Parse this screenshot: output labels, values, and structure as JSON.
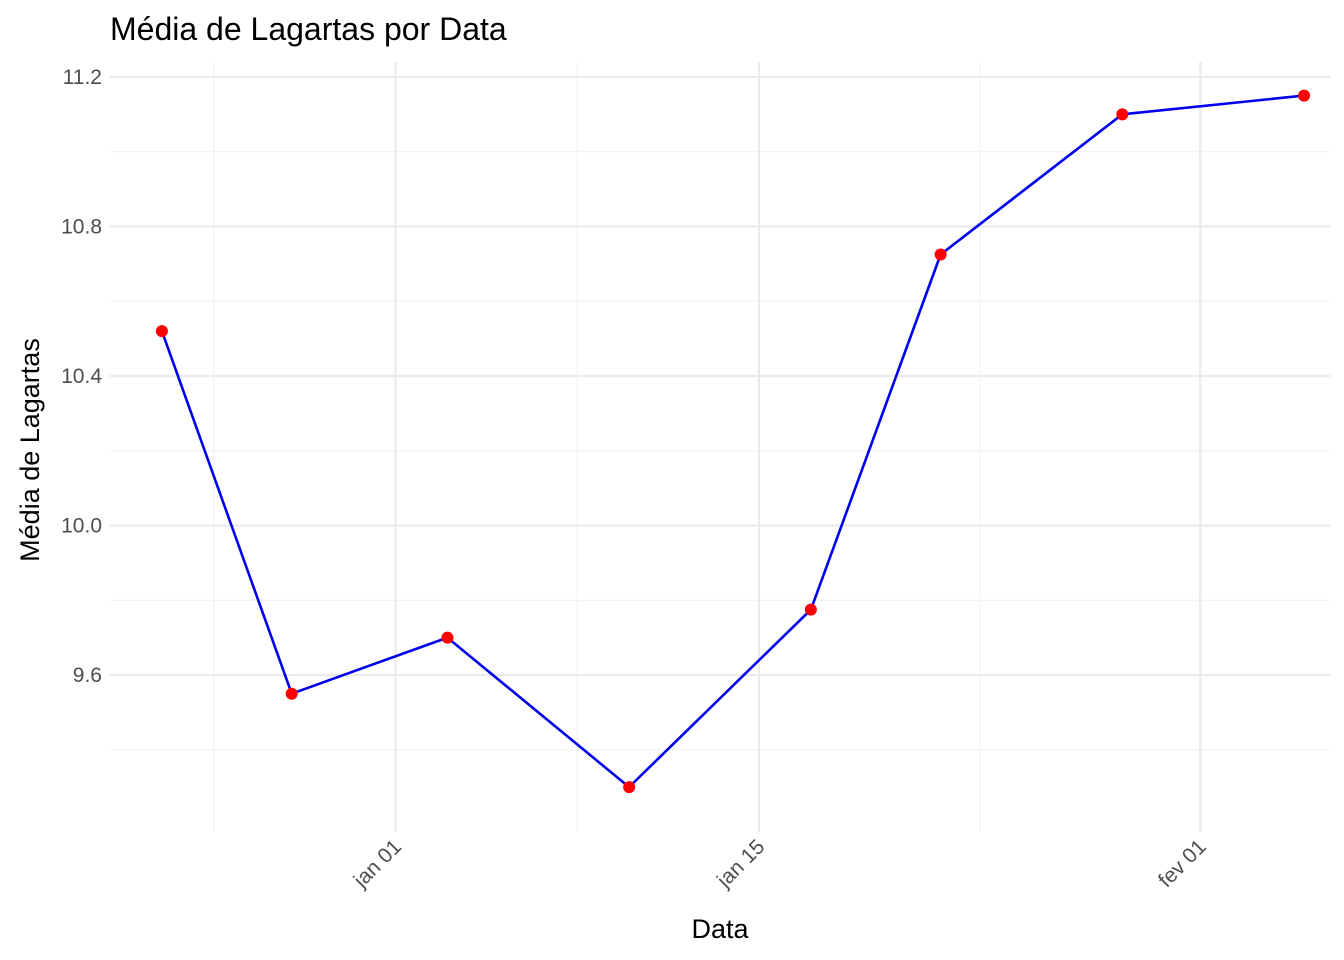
{
  "chart_data": {
    "type": "line",
    "title": "Média de Lagartas por Data",
    "xlabel": "Data",
    "ylabel": "Média de Lagartas",
    "x_axis_type": "date",
    "x_tick_labels": [
      "jan 01",
      "jan 15",
      "fev 01"
    ],
    "x_tick_dates": [
      "2000-01-01",
      "2000-01-15",
      "2000-02-01"
    ],
    "xlim": [
      "1999-12-21",
      "2000-02-06"
    ],
    "y_ticks": [
      9.6,
      10.0,
      10.4,
      10.8,
      11.2
    ],
    "y_tick_labels": [
      "9.6",
      "10.0",
      "10.4",
      "10.8",
      "11.2"
    ],
    "ylim": [
      9.18,
      11.24
    ],
    "grid": true,
    "legend": "none",
    "line_color": "#0000ee",
    "point_color": "#ff0000",
    "series": [
      {
        "x": [
          "1999-12-23",
          "1999-12-28",
          "2000-01-03",
          "2000-01-10",
          "2000-01-17",
          "2000-01-22",
          "2000-01-29",
          "2000-02-05"
        ],
        "y": [
          10.52,
          9.55,
          9.7,
          9.3,
          9.775,
          10.725,
          11.1,
          11.15
        ]
      }
    ]
  }
}
